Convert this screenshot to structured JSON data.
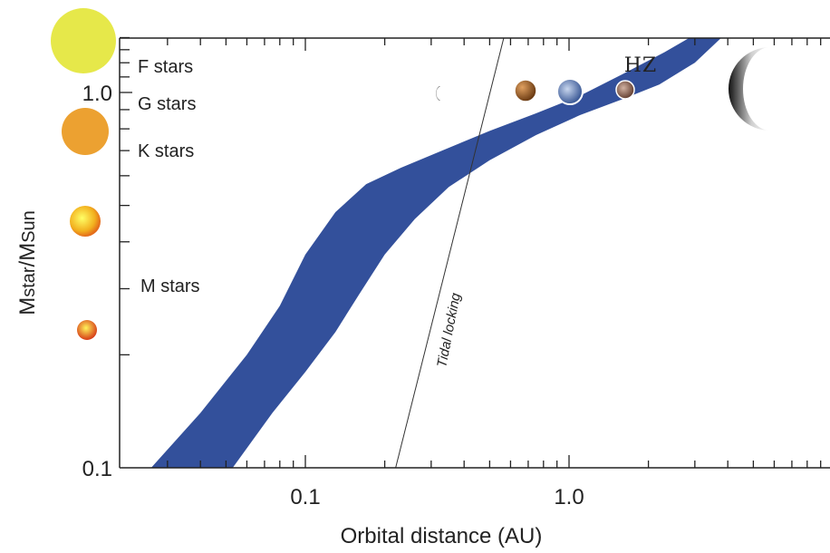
{
  "chart_data": {
    "type": "area",
    "xlabel": "Orbital distance (AU)",
    "ylabel_main": "M",
    "ylabel_sub1": "star",
    "ylabel_slash": "/M",
    "ylabel_sub2": "Sun",
    "xscale": "log",
    "yscale": "log",
    "xlim": [
      0.025,
      10
    ],
    "ylim": [
      0.1,
      1.5
    ],
    "x_ticks": [
      {
        "value": 0.1,
        "label": "0.1"
      },
      {
        "value": 1.0,
        "label": "1.0"
      }
    ],
    "y_ticks": [
      {
        "value": 0.1,
        "label": "0.1"
      },
      {
        "value": 1.0,
        "label": "1.0"
      }
    ],
    "series": [
      {
        "name": "HZ",
        "inner_edge": [
          [
            0.026,
            0.1
          ],
          [
            0.04,
            0.14
          ],
          [
            0.06,
            0.2
          ],
          [
            0.08,
            0.27
          ],
          [
            0.1,
            0.37
          ],
          [
            0.13,
            0.48
          ],
          [
            0.17,
            0.57
          ],
          [
            0.23,
            0.63
          ],
          [
            0.33,
            0.7
          ],
          [
            0.5,
            0.79
          ],
          [
            0.75,
            0.88
          ],
          [
            1.1,
            0.98
          ],
          [
            1.6,
            1.12
          ],
          [
            2.3,
            1.28
          ],
          [
            3.4,
            1.5
          ]
        ],
        "outer_edge": [
          [
            0.053,
            0.1
          ],
          [
            0.075,
            0.14
          ],
          [
            0.1,
            0.18
          ],
          [
            0.13,
            0.23
          ],
          [
            0.16,
            0.29
          ],
          [
            0.2,
            0.37
          ],
          [
            0.26,
            0.46
          ],
          [
            0.35,
            0.56
          ],
          [
            0.5,
            0.66
          ],
          [
            0.75,
            0.77
          ],
          [
            1.1,
            0.87
          ],
          [
            1.6,
            0.96
          ],
          [
            2.2,
            1.05
          ],
          [
            3.0,
            1.2
          ],
          [
            4.2,
            1.5
          ]
        ],
        "color": "#33509b"
      }
    ],
    "tidal_locking_line": {
      "label": "Tidal locking",
      "points": [
        [
          0.22,
          0.1
        ],
        [
          0.58,
          1.5
        ]
      ]
    },
    "star_classes": [
      {
        "label": "F stars",
        "mass": 1.3
      },
      {
        "label": "G stars",
        "mass": 0.97
      },
      {
        "label": "K stars",
        "mass": 0.78
      },
      {
        "label": "M stars",
        "mass": 0.31
      }
    ],
    "stars": [
      {
        "mass": 1.4,
        "color": "#e6e84a"
      },
      {
        "mass": 0.83,
        "color": "#eca131"
      },
      {
        "mass": 0.55,
        "color": "#f4b622"
      },
      {
        "mass": 0.26,
        "color": "#e24a1e"
      }
    ],
    "planets": [
      {
        "a": 0.31,
        "mass": 1.0,
        "color": "#9a9a9a"
      },
      {
        "a": 0.72,
        "mass": 1.0,
        "color": "#b86f2d"
      },
      {
        "a": 1.0,
        "mass": 1.0,
        "color": "#6f86b8"
      },
      {
        "a": 1.52,
        "mass": 1.0,
        "color": "#9b6d5c"
      },
      {
        "a": 5.2,
        "mass": 1.0,
        "color": "#7c7c7c"
      }
    ]
  }
}
